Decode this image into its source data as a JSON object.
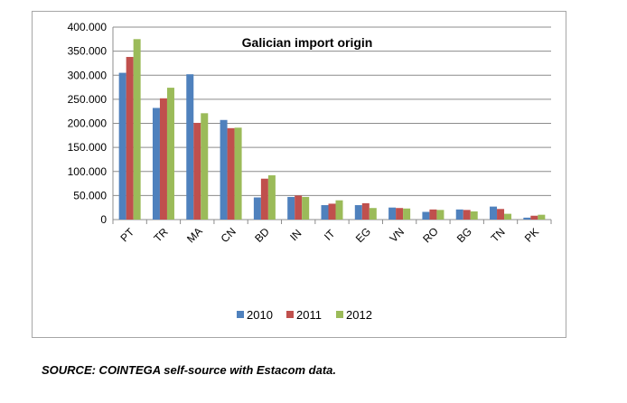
{
  "chart_data": {
    "type": "bar",
    "title": "Galician import origin",
    "categories": [
      "PT",
      "TR",
      "MA",
      "CN",
      "BD",
      "IN",
      "IT",
      "EG",
      "VN",
      "RO",
      "BG",
      "TN",
      "PK"
    ],
    "series": [
      {
        "name": "2010",
        "color": "#4f81bd",
        "values": [
          305000,
          232000,
          302000,
          207000,
          46000,
          47000,
          30000,
          30000,
          25000,
          16000,
          21000,
          27000,
          4000
        ]
      },
      {
        "name": "2011",
        "color": "#c0504d",
        "values": [
          338000,
          252000,
          201000,
          190000,
          85000,
          50000,
          33000,
          34000,
          24000,
          21000,
          20000,
          22000,
          8000
        ]
      },
      {
        "name": "2012",
        "color": "#9bbb59",
        "values": [
          375000,
          274000,
          221000,
          191000,
          92000,
          47000,
          40000,
          24000,
          23000,
          20000,
          17000,
          12000,
          10000
        ]
      }
    ],
    "y_ticks": [
      "0",
      "50.000",
      "100.000",
      "150.000",
      "200.000",
      "250.000",
      "300.000",
      "350.000",
      "400.000"
    ],
    "ylim": [
      0,
      400000
    ],
    "xlabel": "",
    "ylabel": "",
    "grid": true,
    "legend_position": "bottom"
  },
  "source": "SOURCE: COINTEGA self-source with Estacom data."
}
